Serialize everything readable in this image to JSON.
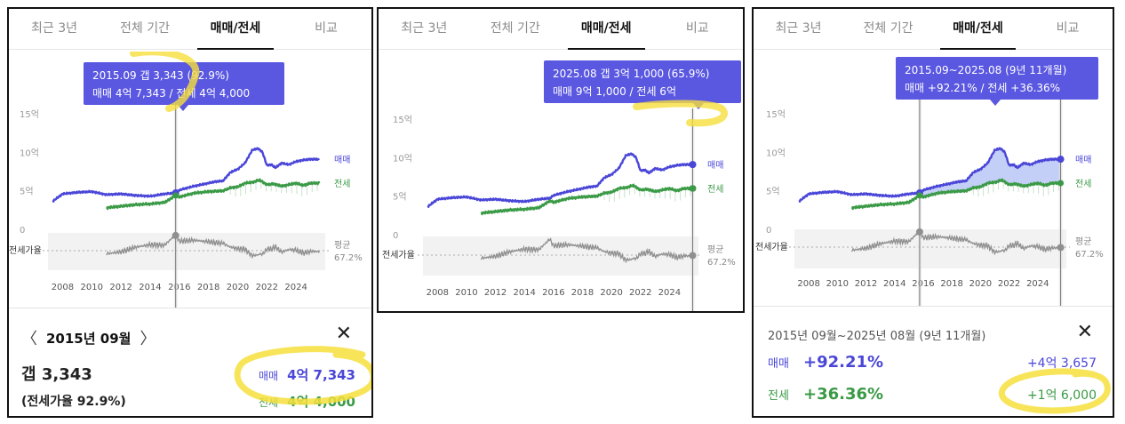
{
  "colors": {
    "sale": "#4a46d8",
    "jeonse": "#3a9a46",
    "ratio": "#8f8f8f",
    "highlight": "#f6df3c",
    "tooltip": "#5a57e0"
  },
  "tabs": [
    "최근 3년",
    "전체 기간",
    "매매/전세",
    "비교"
  ],
  "chart_common": {
    "ytick_labels": [
      "15억",
      "10억",
      "5억",
      "0"
    ],
    "xtick_labels": [
      "2008",
      "2010",
      "2012",
      "2014",
      "2016",
      "2018",
      "2020",
      "2022",
      "2024"
    ],
    "sale_label": "매매",
    "jeonse_label": "전세",
    "ratio_label": "전세가율",
    "avg_label": "평균",
    "avg_value": "67.2%"
  },
  "panels": [
    {
      "active_tab": 2,
      "tooltip": {
        "line1": "2015.09  갭 3,343 (92.9%)",
        "line2": "매매 4억 7,343 / 전세 4억 4,000"
      },
      "detail": {
        "date": "2015년 09월",
        "gap": "갭 3,343",
        "ratio": "(전세가율 92.9%)",
        "sale_label": "매매",
        "sale_value": "4억 7,343",
        "jeonse_label": "전세",
        "jeonse_value": "4억 4,000"
      }
    },
    {
      "active_tab": 2,
      "tooltip": {
        "line1": "2025.08   갭 3억 1,000 (65.9%)",
        "line2": "매매 9억 1,000 / 전세 6억"
      }
    },
    {
      "active_tab": 2,
      "tooltip": {
        "line1": "2015.09~2025.08 (9년 11개월)",
        "line2": "매매 +92.21%  /  전세 +36.36%"
      },
      "detail": {
        "period": "2015년 09월~2025년 08월 (9년 11개월)",
        "sale_label": "매매",
        "sale_pct": "+92.21%",
        "sale_amount": "+4억 3,657",
        "jeonse_label": "전세",
        "jeonse_pct": "+36.36%",
        "jeonse_amount": "+1억 6,000"
      }
    }
  ],
  "chart_data": [
    {
      "type": "line",
      "x_unit": "year",
      "xlim": [
        2007,
        2026
      ],
      "ylim": [
        0,
        15
      ],
      "yunit": "억",
      "series": [
        {
          "name": "매매",
          "x": [
            2007.3,
            2008,
            2009,
            2010,
            2011,
            2012,
            2013,
            2014,
            2015,
            2015.75,
            2016,
            2017,
            2018,
            2018.5,
            2019,
            2019.5,
            2020,
            2020.5,
            2021,
            2021.4,
            2021.7,
            2022,
            2022.3,
            2022.6,
            2023,
            2023.5,
            2024,
            2024.5,
            2025,
            2025.6
          ],
          "y": [
            3.6,
            4.6,
            4.8,
            4.9,
            4.5,
            4.6,
            4.4,
            4.3,
            4.6,
            4.73,
            5.1,
            5.6,
            6.0,
            6.2,
            6.3,
            7.4,
            7.8,
            8.6,
            10.3,
            10.5,
            10.0,
            8.3,
            8.4,
            8.0,
            8.6,
            8.4,
            8.8,
            9.0,
            9.1,
            9.1
          ]
        },
        {
          "name": "전세",
          "x": [
            2011,
            2012,
            2013,
            2014,
            2015,
            2015.75,
            2016,
            2017,
            2018,
            2019,
            2019.5,
            2020,
            2020.5,
            2021,
            2021.5,
            2022,
            2022.5,
            2023,
            2023.5,
            2024,
            2024.5,
            2025,
            2025.6
          ],
          "y": [
            2.8,
            3.0,
            3.2,
            3.3,
            3.5,
            4.4,
            4.2,
            4.7,
            4.9,
            5.0,
            5.4,
            5.5,
            6.0,
            6.1,
            6.4,
            5.8,
            5.9,
            5.6,
            5.8,
            6.0,
            5.7,
            6.0,
            6.0
          ]
        }
      ],
      "ratio_avg": "67.2%",
      "selected": "2015.09"
    },
    {
      "type": "line",
      "xlim": [
        2007,
        2026
      ],
      "ylim": [
        0,
        15
      ],
      "selected": "2025.08"
    },
    {
      "type": "area",
      "xlim": [
        2007,
        2026
      ],
      "ylim": [
        0,
        15
      ],
      "range": [
        "2015.09",
        "2025.08"
      ]
    }
  ]
}
